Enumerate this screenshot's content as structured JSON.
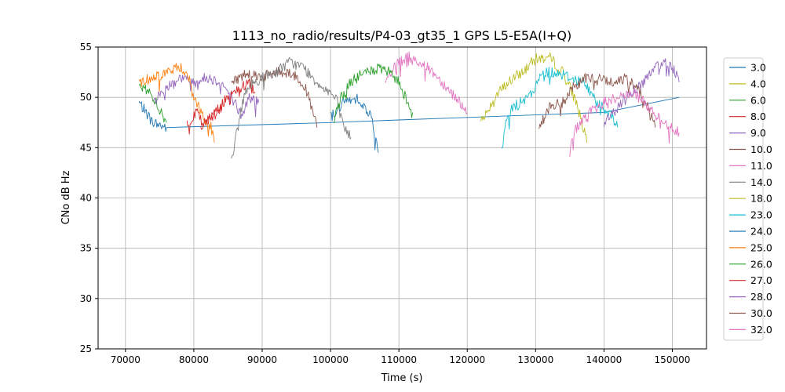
{
  "chart_data": {
    "type": "line",
    "title": "1113_no_radio/results/P4-03_gt35_1 GPS L5-E5A(I+Q)",
    "xlabel": "Time (s)",
    "ylabel": "CNo dB Hz",
    "xlim": [
      66000,
      155000
    ],
    "ylim": [
      25,
      55
    ],
    "xticks": [
      70000,
      80000,
      90000,
      100000,
      110000,
      120000,
      130000,
      140000,
      150000
    ],
    "xtick_labels": [
      "70000",
      "80000",
      "90000",
      "100000",
      "110000",
      "120000",
      "130000",
      "140000",
      "150000"
    ],
    "yticks": [
      25,
      30,
      35,
      40,
      45,
      50,
      55
    ],
    "ytick_labels": [
      "25",
      "30",
      "35",
      "40",
      "45",
      "50",
      "55"
    ],
    "grid": true,
    "legend_position": "right",
    "series": [
      {
        "name": "3.0",
        "color": "#1f77b4",
        "points": [
          [
            72000,
            49.5
          ],
          [
            74000,
            47.5
          ],
          [
            76000,
            47.0
          ],
          [
            100000,
            47.5
          ],
          [
            120000,
            48.0
          ],
          [
            140000,
            48.5
          ],
          [
            151000,
            50.0
          ]
        ]
      },
      {
        "name": "4.0",
        "color": "#bcbd22",
        "points": [
          [
            122000,
            47.5
          ],
          [
            124000,
            50.0
          ],
          [
            126000,
            51.5
          ],
          [
            128000,
            52.5
          ],
          [
            130000,
            53.8
          ],
          [
            132000,
            54.0
          ],
          [
            134000,
            52.5
          ],
          [
            136000,
            49.5
          ],
          [
            137500,
            45.5
          ]
        ]
      },
      {
        "name": "6.0",
        "color": "#2ca02c",
        "points": [
          [
            72000,
            51.0
          ],
          [
            73500,
            50.5
          ],
          [
            74500,
            49.5
          ],
          [
            75500,
            48.0
          ],
          [
            76000,
            47.5
          ]
        ]
      },
      {
        "name": "8.0",
        "color": "#d62728",
        "points": [
          [
            79000,
            47.5
          ],
          [
            80500,
            48.5
          ],
          [
            81500,
            47.0
          ],
          [
            82500,
            48.0
          ],
          [
            83500,
            49.0
          ],
          [
            84000,
            48.5
          ]
        ]
      },
      {
        "name": "9.0",
        "color": "#9467bd",
        "points": [
          [
            74000,
            49.5
          ],
          [
            76000,
            51.0
          ],
          [
            78000,
            52.0
          ],
          [
            80000,
            51.5
          ],
          [
            82000,
            52.0
          ],
          [
            84000,
            51.5
          ],
          [
            86000,
            49.5
          ],
          [
            87000,
            48.0
          ],
          [
            88000,
            50.0
          ],
          [
            89500,
            49.5
          ]
        ]
      },
      {
        "name": "10.0",
        "color": "#8c564b",
        "points": [
          [
            85500,
            51.5
          ],
          [
            88000,
            52.5
          ],
          [
            90000,
            52.0
          ],
          [
            92000,
            52.5
          ],
          [
            94000,
            52.5
          ],
          [
            96000,
            51.5
          ],
          [
            97000,
            49.5
          ],
          [
            98000,
            47.0
          ]
        ]
      },
      {
        "name": "11.0",
        "color": "#e377c2",
        "points": [
          [
            108000,
            51.5
          ],
          [
            110000,
            53.5
          ],
          [
            111500,
            54.0
          ],
          [
            113000,
            53.5
          ],
          [
            115000,
            52.5
          ],
          [
            117000,
            51.0
          ],
          [
            119000,
            49.5
          ],
          [
            120000,
            48.5
          ]
        ]
      },
      {
        "name": "14.0",
        "color": "#7f7f7f",
        "points": [
          [
            85500,
            44.0
          ],
          [
            86500,
            47.0
          ],
          [
            87000,
            49.5
          ],
          [
            88000,
            51.0
          ],
          [
            90000,
            52.0
          ],
          [
            92000,
            52.5
          ],
          [
            94000,
            53.5
          ],
          [
            96000,
            53.0
          ],
          [
            98000,
            51.5
          ],
          [
            100000,
            50.5
          ],
          [
            101000,
            49.5
          ],
          [
            102000,
            47.0
          ],
          [
            103000,
            46.0
          ]
        ]
      },
      {
        "name": "18.0",
        "color": "#bcbd22",
        "points": []
      },
      {
        "name": "23.0",
        "color": "#17becf",
        "points": [
          [
            125000,
            44.5
          ],
          [
            125500,
            47.0
          ],
          [
            126500,
            49.0
          ],
          [
            128000,
            49.5
          ],
          [
            129000,
            50.0
          ],
          [
            130000,
            51.0
          ],
          [
            131000,
            52.5
          ],
          [
            133000,
            52.5
          ],
          [
            135000,
            52.0
          ],
          [
            137000,
            51.5
          ],
          [
            139000,
            49.5
          ],
          [
            141000,
            48.5
          ],
          [
            142000,
            47.0
          ]
        ]
      },
      {
        "name": "24.0",
        "color": "#1f77b4",
        "points": [
          [
            100000,
            48.0
          ],
          [
            102000,
            49.5
          ],
          [
            104000,
            50.0
          ],
          [
            105000,
            49.0
          ],
          [
            106000,
            48.0
          ],
          [
            107000,
            44.5
          ]
        ]
      },
      {
        "name": "25.0",
        "color": "#ff7f0e",
        "points": [
          [
            72000,
            51.5
          ],
          [
            74000,
            52.0
          ],
          [
            76000,
            52.5
          ],
          [
            78000,
            53.0
          ],
          [
            79000,
            52.5
          ],
          [
            80000,
            50.0
          ],
          [
            81500,
            48.0
          ],
          [
            82500,
            47.0
          ],
          [
            83000,
            45.5
          ]
        ]
      },
      {
        "name": "26.0",
        "color": "#2ca02c",
        "points": [
          [
            100500,
            47.5
          ],
          [
            101500,
            50.0
          ],
          [
            103000,
            51.5
          ],
          [
            105000,
            52.5
          ],
          [
            107000,
            52.8
          ],
          [
            108500,
            52.5
          ],
          [
            110000,
            51.5
          ],
          [
            111000,
            50.0
          ],
          [
            112000,
            48.5
          ]
        ]
      },
      {
        "name": "27.0",
        "color": "#d62728",
        "points": [
          [
            81000,
            47.0
          ],
          [
            83000,
            48.5
          ],
          [
            85000,
            50.0
          ],
          [
            87000,
            51.0
          ],
          [
            88000,
            51.5
          ],
          [
            89000,
            50.5
          ]
        ]
      },
      {
        "name": "28.0",
        "color": "#9467bd",
        "points": [
          [
            140000,
            47.5
          ],
          [
            141500,
            48.5
          ],
          [
            143000,
            50.0
          ],
          [
            145000,
            51.0
          ],
          [
            147000,
            52.5
          ],
          [
            148500,
            53.5
          ],
          [
            149500,
            53.5
          ],
          [
            150500,
            52.5
          ],
          [
            151000,
            51.5
          ]
        ]
      },
      {
        "name": "30.0",
        "color": "#8c564b",
        "points": [
          [
            130500,
            47.0
          ],
          [
            132000,
            49.0
          ],
          [
            134000,
            49.5
          ],
          [
            135500,
            51.0
          ],
          [
            137000,
            51.8
          ],
          [
            139000,
            52.0
          ],
          [
            141000,
            51.5
          ],
          [
            143000,
            51.8
          ],
          [
            145000,
            51.0
          ],
          [
            146500,
            49.0
          ],
          [
            147500,
            47.0
          ]
        ]
      },
      {
        "name": "32.0",
        "color": "#e377c2",
        "points": [
          [
            135000,
            45.0
          ],
          [
            136000,
            47.0
          ],
          [
            138000,
            48.5
          ],
          [
            140000,
            49.5
          ],
          [
            142000,
            50.0
          ],
          [
            144000,
            50.5
          ],
          [
            146000,
            49.5
          ],
          [
            148000,
            48.0
          ],
          [
            150000,
            47.0
          ],
          [
            151000,
            46.5
          ]
        ]
      }
    ]
  }
}
